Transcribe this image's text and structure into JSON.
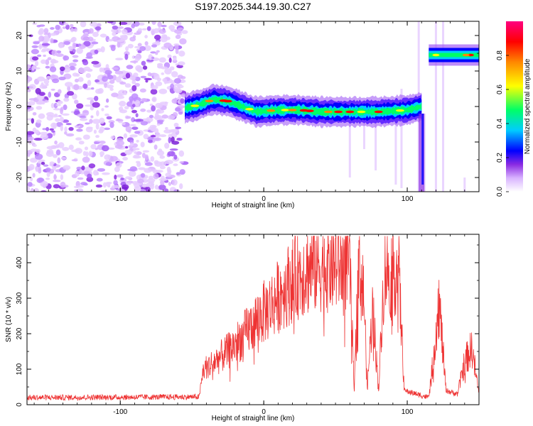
{
  "title": "S197.2025.344.19.30.C27",
  "chart_data": [
    {
      "type": "heatmap",
      "title": "S197.2025.344.19.30.C27",
      "xlabel": "Height of straight line (km)",
      "ylabel": "Frequency (Hz)",
      "xlim": [
        -165,
        150
      ],
      "ylim": [
        -24,
        24
      ],
      "xticks": [
        -100,
        0,
        100
      ],
      "yticks": [
        -20,
        -10,
        0,
        10,
        20
      ],
      "colorbar": {
        "label": "Normalized spectral amplitude",
        "range": [
          0.0,
          1.0
        ],
        "ticks": [
          0.0,
          0.2,
          0.4,
          0.6,
          0.8
        ],
        "tick_labels": [
          "0.0",
          "0.2",
          "0.4",
          "0.6",
          "0.8"
        ],
        "colormap": [
          "#ffffff",
          "#d9b3ff",
          "#8a2be2",
          "#0000ff",
          "#00ccff",
          "#00ff66",
          "#ffff00",
          "#ff8800",
          "#ff0000",
          "#ff0080"
        ]
      },
      "features": {
        "noise_region_x": [
          -165,
          -55
        ],
        "ridge_points": [
          [
            -55,
            -0.5
          ],
          [
            -45,
            0.5
          ],
          [
            -35,
            2
          ],
          [
            -25,
            1.5
          ],
          [
            -15,
            0
          ],
          [
            -5,
            -1.5
          ],
          [
            10,
            -1
          ],
          [
            25,
            -1
          ],
          [
            40,
            -1.5
          ],
          [
            60,
            -1.5
          ],
          [
            80,
            -1.5
          ],
          [
            100,
            -1
          ],
          [
            110,
            0
          ]
        ],
        "high_band_x": [
          115,
          150
        ],
        "high_band_freq": 14.5
      }
    },
    {
      "type": "line",
      "xlabel": "Height of straight line (km)",
      "ylabel": "SNR (10 * v/v)",
      "xlim": [
        -165,
        150
      ],
      "ylim": [
        0,
        480
      ],
      "xticks": [
        -100,
        0,
        100
      ],
      "yticks": [
        0,
        100,
        200,
        300,
        400
      ],
      "color": "#ee3333",
      "series_envelope": [
        [
          -165,
          20
        ],
        [
          -45,
          22
        ],
        [
          -42,
          100
        ],
        [
          -35,
          120
        ],
        [
          -25,
          150
        ],
        [
          -15,
          190
        ],
        [
          -5,
          240
        ],
        [
          5,
          280
        ],
        [
          15,
          330
        ],
        [
          25,
          370
        ],
        [
          35,
          390
        ],
        [
          50,
          395
        ],
        [
          60,
          400
        ],
        [
          63,
          30
        ],
        [
          66,
          400
        ],
        [
          70,
          300
        ],
        [
          72,
          40
        ],
        [
          76,
          280
        ],
        [
          80,
          40
        ],
        [
          84,
          380
        ],
        [
          94,
          380
        ],
        [
          98,
          40
        ],
        [
          115,
          20
        ],
        [
          118,
          120
        ],
        [
          122,
          300
        ],
        [
          127,
          40
        ],
        [
          135,
          30
        ],
        [
          140,
          120
        ],
        [
          145,
          160
        ],
        [
          150,
          30
        ]
      ]
    }
  ]
}
